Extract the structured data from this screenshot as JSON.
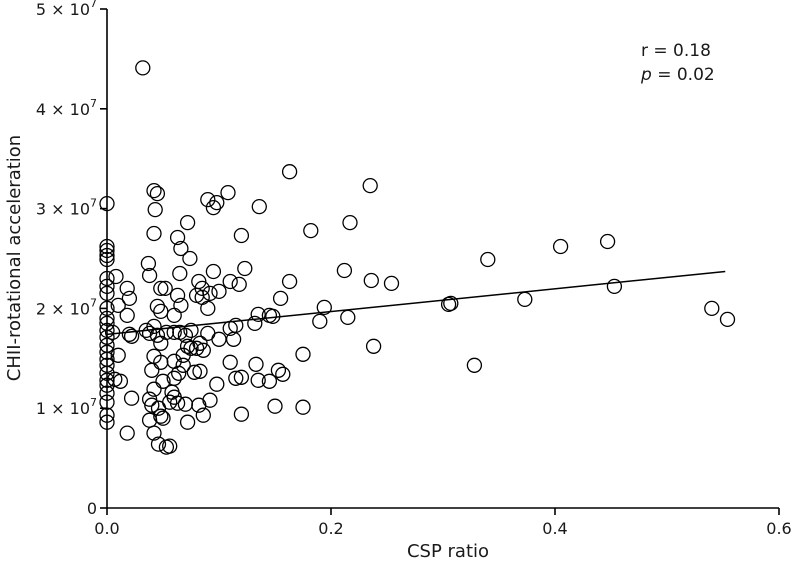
{
  "chart_data": {
    "type": "scatter",
    "title": "",
    "xlabel": "CSP ratio",
    "ylabel": "CHII-rotational acceleration",
    "xlim": [
      0,
      0.6
    ],
    "ylim": [
      0,
      50000000
    ],
    "x_ticks": [
      {
        "value": 0,
        "label": "0.0"
      },
      {
        "value": 0.2,
        "label": "0.2"
      },
      {
        "value": 0.4,
        "label": "0.4"
      },
      {
        "value": 0.6,
        "label": "0.6"
      }
    ],
    "y_ticks": [
      {
        "value": 0,
        "label": "0",
        "exp": ""
      },
      {
        "value": 10000000,
        "label": "1 × 10",
        "exp": "7"
      },
      {
        "value": 20000000,
        "label": "2 × 10",
        "exp": "7"
      },
      {
        "value": 30000000,
        "label": "3 × 10",
        "exp": "7"
      },
      {
        "value": 40000000,
        "label": "4 × 10",
        "exp": "7"
      },
      {
        "value": 50000000,
        "label": "5 × 10",
        "exp": "7"
      }
    ],
    "annotations": {
      "r_text": "r = 0.18",
      "p_symbol": "p",
      "p_value": " = 0.02"
    },
    "regression": {
      "x": [
        0.0,
        0.552
      ],
      "y": [
        17400000,
        23700000
      ]
    },
    "grid": false,
    "points": [
      [
        0.0,
        30500000
      ],
      [
        0.0,
        26200000
      ],
      [
        0.0,
        25800000
      ],
      [
        0.0,
        25300000
      ],
      [
        0.0,
        24900000
      ],
      [
        0.0,
        23000000
      ],
      [
        0.0,
        22200000
      ],
      [
        0.0,
        21500000
      ],
      [
        0.0,
        20000000
      ],
      [
        0.0,
        18500000
      ],
      [
        0.0,
        17800000
      ],
      [
        0.0,
        17100000
      ],
      [
        0.0,
        16300000
      ],
      [
        0.0,
        15600000
      ],
      [
        0.0,
        14900000
      ],
      [
        0.0,
        14300000
      ],
      [
        0.0,
        13500000
      ],
      [
        0.0,
        12800000
      ],
      [
        0.0,
        12300000
      ],
      [
        0.0,
        10600000
      ],
      [
        0.0,
        9300000
      ],
      [
        0.0,
        8600000
      ],
      [
        0.0,
        19000000
      ],
      [
        0.0,
        11500000
      ],
      [
        0.008,
        23200000
      ],
      [
        0.01,
        20300000
      ],
      [
        0.005,
        17600000
      ],
      [
        0.01,
        15300000
      ],
      [
        0.012,
        12700000
      ],
      [
        0.007,
        12900000
      ],
      [
        0.018,
        22000000
      ],
      [
        0.02,
        21000000
      ],
      [
        0.018,
        19300000
      ],
      [
        0.02,
        17400000
      ],
      [
        0.022,
        17200000
      ],
      [
        0.018,
        7500000
      ],
      [
        0.022,
        11000000
      ],
      [
        0.032,
        44100000
      ],
      [
        0.042,
        31800000
      ],
      [
        0.045,
        31500000
      ],
      [
        0.043,
        29900000
      ],
      [
        0.042,
        27500000
      ],
      [
        0.037,
        24500000
      ],
      [
        0.038,
        23300000
      ],
      [
        0.048,
        22000000
      ],
      [
        0.052,
        22000000
      ],
      [
        0.045,
        20200000
      ],
      [
        0.048,
        19700000
      ],
      [
        0.042,
        18200000
      ],
      [
        0.035,
        17800000
      ],
      [
        0.038,
        17500000
      ],
      [
        0.045,
        17300000
      ],
      [
        0.053,
        17600000
      ],
      [
        0.048,
        16500000
      ],
      [
        0.042,
        15200000
      ],
      [
        0.048,
        14600000
      ],
      [
        0.04,
        13800000
      ],
      [
        0.05,
        12700000
      ],
      [
        0.042,
        11900000
      ],
      [
        0.038,
        10900000
      ],
      [
        0.04,
        10300000
      ],
      [
        0.046,
        10000000
      ],
      [
        0.048,
        9200000
      ],
      [
        0.05,
        9000000
      ],
      [
        0.038,
        8800000
      ],
      [
        0.042,
        7500000
      ],
      [
        0.046,
        6400000
      ],
      [
        0.053,
        6100000
      ],
      [
        0.056,
        6200000
      ],
      [
        0.063,
        27100000
      ],
      [
        0.066,
        26000000
      ],
      [
        0.065,
        23500000
      ],
      [
        0.063,
        21300000
      ],
      [
        0.066,
        20300000
      ],
      [
        0.06,
        19300000
      ],
      [
        0.06,
        17600000
      ],
      [
        0.065,
        17600000
      ],
      [
        0.07,
        17300000
      ],
      [
        0.072,
        16200000
      ],
      [
        0.06,
        14700000
      ],
      [
        0.068,
        15300000
      ],
      [
        0.068,
        14300000
      ],
      [
        0.064,
        13500000
      ],
      [
        0.06,
        13000000
      ],
      [
        0.058,
        11600000
      ],
      [
        0.06,
        11100000
      ],
      [
        0.056,
        10600000
      ],
      [
        0.063,
        10500000
      ],
      [
        0.072,
        28600000
      ],
      [
        0.074,
        25000000
      ],
      [
        0.075,
        17800000
      ],
      [
        0.075,
        16000000
      ],
      [
        0.078,
        13600000
      ],
      [
        0.07,
        10400000
      ],
      [
        0.072,
        8600000
      ],
      [
        0.082,
        22700000
      ],
      [
        0.085,
        22000000
      ],
      [
        0.08,
        21300000
      ],
      [
        0.085,
        21100000
      ],
      [
        0.083,
        16500000
      ],
      [
        0.08,
        16000000
      ],
      [
        0.086,
        15800000
      ],
      [
        0.083,
        13700000
      ],
      [
        0.082,
        10300000
      ],
      [
        0.086,
        9300000
      ],
      [
        0.09,
        30900000
      ],
      [
        0.095,
        30100000
      ],
      [
        0.098,
        30600000
      ],
      [
        0.095,
        23700000
      ],
      [
        0.092,
        21500000
      ],
      [
        0.09,
        20000000
      ],
      [
        0.09,
        17500000
      ],
      [
        0.092,
        10800000
      ],
      [
        0.1,
        21700000
      ],
      [
        0.1,
        16900000
      ],
      [
        0.098,
        12400000
      ],
      [
        0.108,
        31600000
      ],
      [
        0.11,
        22700000
      ],
      [
        0.11,
        18000000
      ],
      [
        0.11,
        14600000
      ],
      [
        0.113,
        16900000
      ],
      [
        0.115,
        18300000
      ],
      [
        0.118,
        22400000
      ],
      [
        0.115,
        13000000
      ],
      [
        0.12,
        27300000
      ],
      [
        0.123,
        24000000
      ],
      [
        0.12,
        13100000
      ],
      [
        0.12,
        9400000
      ],
      [
        0.132,
        18500000
      ],
      [
        0.136,
        30200000
      ],
      [
        0.135,
        19400000
      ],
      [
        0.133,
        14400000
      ],
      [
        0.135,
        12800000
      ],
      [
        0.145,
        19300000
      ],
      [
        0.148,
        19200000
      ],
      [
        0.145,
        12700000
      ],
      [
        0.15,
        10200000
      ],
      [
        0.153,
        13800000
      ],
      [
        0.157,
        13400000
      ],
      [
        0.155,
        21000000
      ],
      [
        0.163,
        33700000
      ],
      [
        0.163,
        22700000
      ],
      [
        0.175,
        15400000
      ],
      [
        0.175,
        10100000
      ],
      [
        0.182,
        27800000
      ],
      [
        0.19,
        18700000
      ],
      [
        0.194,
        20100000
      ],
      [
        0.212,
        23800000
      ],
      [
        0.215,
        19100000
      ],
      [
        0.217,
        28600000
      ],
      [
        0.235,
        32300000
      ],
      [
        0.236,
        22800000
      ],
      [
        0.238,
        16200000
      ],
      [
        0.254,
        22500000
      ],
      [
        0.305,
        20400000
      ],
      [
        0.307,
        20500000
      ],
      [
        0.328,
        14300000
      ],
      [
        0.34,
        24900000
      ],
      [
        0.373,
        20900000
      ],
      [
        0.405,
        26200000
      ],
      [
        0.447,
        26700000
      ],
      [
        0.453,
        22200000
      ],
      [
        0.54,
        20000000
      ],
      [
        0.554,
        18900000
      ]
    ]
  }
}
